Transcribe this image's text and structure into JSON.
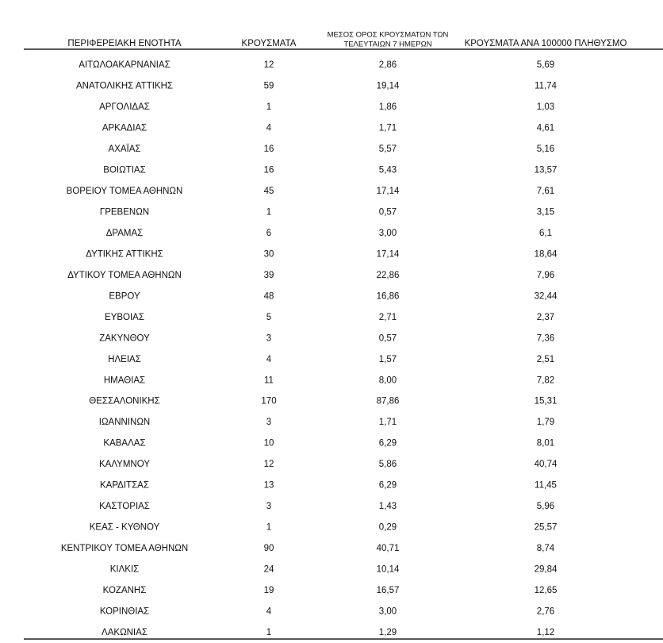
{
  "table": {
    "header": [
      "ΠΕΡΙΦΕΡΕΙΑΚΗ ΕΝΟΤΗΤΑ",
      "ΚΡΟΥΣΜΑΤΑ",
      [
        "ΜΕΣΟΣ ΟΡΟΣ ΚΡΟΥΣΜΑΤΩΝ ΤΩΝ",
        "ΤΕΛΕΥΤΑΙΩΝ 7 ΗΜΕΡΩΝ"
      ],
      "ΚΡΟΥΣΜΑΤΑ ΑΝΑ 100000 ΠΛΗΘΥΣΜΟ"
    ],
    "rows": [
      [
        "ΑΙΤΩΛΟΑΚΑΡΝΑΝΙΑΣ",
        "12",
        "2,86",
        "5,69"
      ],
      [
        "ΑΝΑΤΟΛΙΚΗΣ ΑΤΤΙΚΗΣ",
        "59",
        "19,14",
        "11,74"
      ],
      [
        "ΑΡΓΟΛΙΔΑΣ",
        "1",
        "1,86",
        "1,03"
      ],
      [
        "ΑΡΚΑΔΙΑΣ",
        "4",
        "1,71",
        "4,61"
      ],
      [
        "ΑΧΑΪΑΣ",
        "16",
        "5,57",
        "5,16"
      ],
      [
        "ΒΟΙΩΤΙΑΣ",
        "16",
        "5,43",
        "13,57"
      ],
      [
        "ΒΟΡΕΙΟΥ ΤΟΜΕΑ ΑΘΗΝΩΝ",
        "45",
        "17,14",
        "7,61"
      ],
      [
        "ΓΡΕΒΕΝΩΝ",
        "1",
        "0,57",
        "3,15"
      ],
      [
        "ΔΡΑΜΑΣ",
        "6",
        "3,00",
        "6,1"
      ],
      [
        "ΔΥΤΙΚΗΣ ΑΤΤΙΚΗΣ",
        "30",
        "17,14",
        "18,64"
      ],
      [
        "ΔΥΤΙΚΟΥ ΤΟΜΕΑ ΑΘΗΝΩΝ",
        "39",
        "22,86",
        "7,96"
      ],
      [
        "ΕΒΡΟΥ",
        "48",
        "16,86",
        "32,44"
      ],
      [
        "ΕΥΒΟΙΑΣ",
        "5",
        "2,71",
        "2,37"
      ],
      [
        "ΖΑΚΥΝΘΟΥ",
        "3",
        "0,57",
        "7,36"
      ],
      [
        "ΗΛΕΙΑΣ",
        "4",
        "1,57",
        "2,51"
      ],
      [
        "ΗΜΑΘΙΑΣ",
        "11",
        "8,00",
        "7,82"
      ],
      [
        "ΘΕΣΣΑΛΟΝΙΚΗΣ",
        "170",
        "87,86",
        "15,31"
      ],
      [
        "ΙΩΑΝΝΙΝΩΝ",
        "3",
        "1,71",
        "1,79"
      ],
      [
        "ΚΑΒΑΛΑΣ",
        "10",
        "6,29",
        "8,01"
      ],
      [
        "ΚΑΛΥΜΝΟΥ",
        "12",
        "5,86",
        "40,74"
      ],
      [
        "ΚΑΡΔΙΤΣΑΣ",
        "13",
        "6,29",
        "11,45"
      ],
      [
        "ΚΑΣΤΟΡΙΑΣ",
        "3",
        "1,43",
        "5,96"
      ],
      [
        "ΚΕΑΣ - ΚΥΘΝΟΥ",
        "1",
        "0,29",
        "25,57"
      ],
      [
        "ΚΕΝΤΡΙΚΟΥ ΤΟΜΕΑ ΑΘΗΝΩΝ",
        "90",
        "40,71",
        "8,74"
      ],
      [
        "ΚΙΛΚΙΣ",
        "24",
        "10,14",
        "29,84"
      ],
      [
        "ΚΟΖΑΝΗΣ",
        "19",
        "16,57",
        "12,65"
      ],
      [
        "ΚΟΡΙΝΘΙΑΣ",
        "4",
        "3,00",
        "2,76"
      ],
      [
        "ΛΑΚΩΝΙΑΣ",
        "1",
        "1,29",
        "1,12"
      ]
    ]
  }
}
